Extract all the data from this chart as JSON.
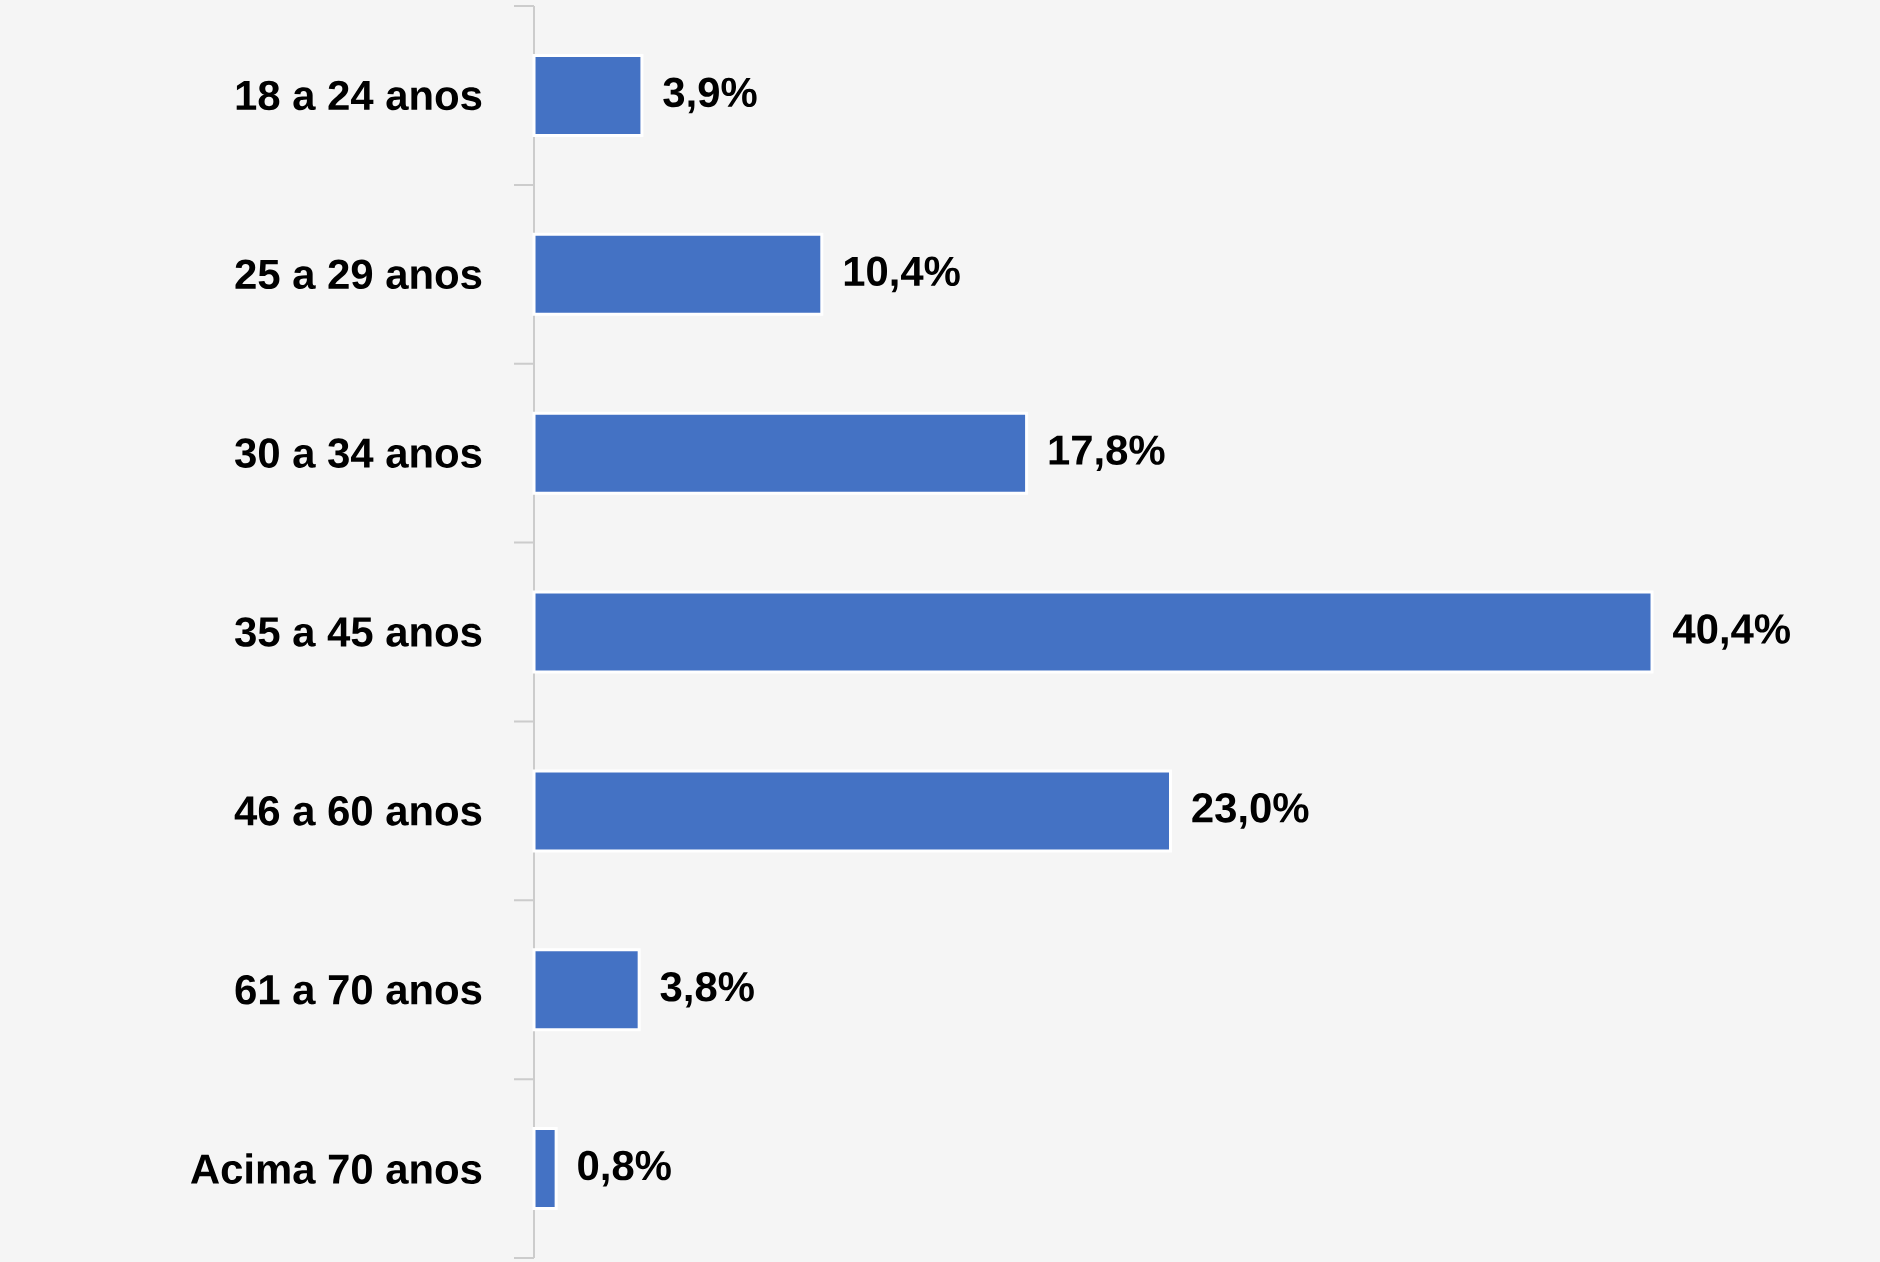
{
  "chart_data": {
    "type": "bar",
    "orientation": "horizontal",
    "categories": [
      "18 a 24 anos",
      "25 a 29 anos",
      "30 a 34 anos",
      "35 a 45 anos",
      "46 a 60 anos",
      "61 a 70 anos",
      "Acima 70 anos"
    ],
    "values": [
      3.9,
      10.4,
      17.8,
      40.4,
      23.0,
      3.8,
      0.8
    ],
    "value_labels": [
      "3,9%",
      "10,4%",
      "17,8%",
      "40,4%",
      "23,0%",
      "3,8%",
      "0,8%"
    ],
    "color": "#4472c4",
    "tick_labels": "y"
  }
}
